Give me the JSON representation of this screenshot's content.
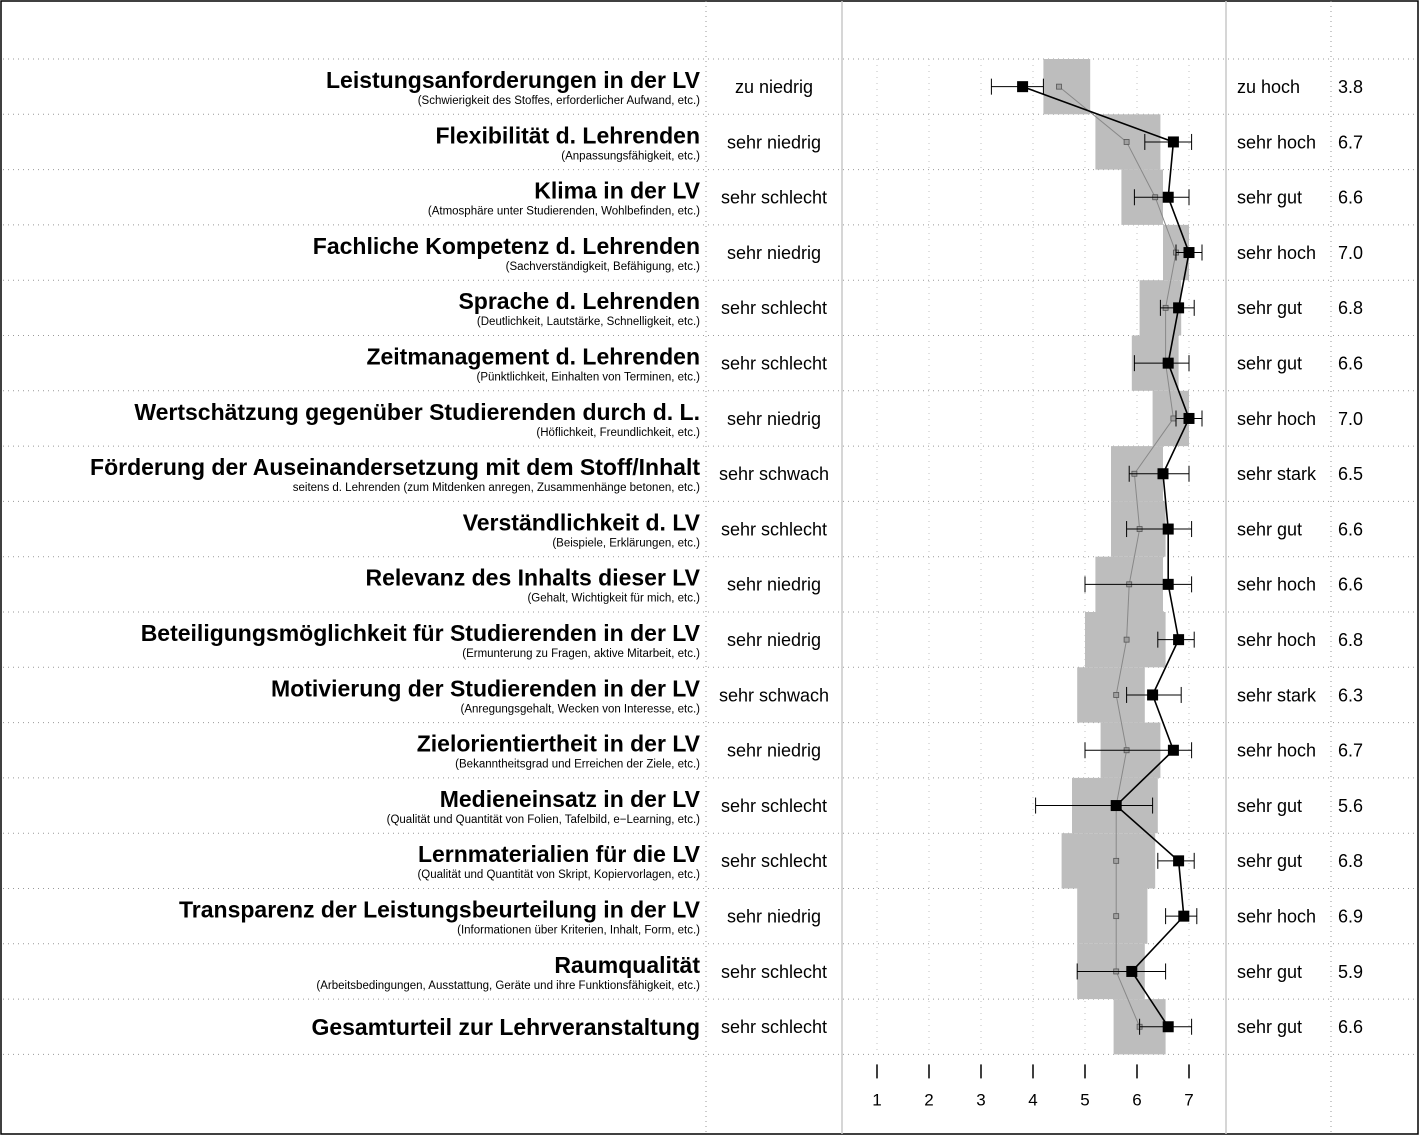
{
  "chart_data": {
    "type": "profile",
    "xlim": [
      1,
      7
    ],
    "xticks": [
      "1",
      "2",
      "3",
      "4",
      "5",
      "6",
      "7"
    ],
    "series": [
      {
        "values": [
          3.8,
          6.7,
          6.6,
          7.0,
          6.8,
          6.6,
          7.0,
          6.5,
          6.6,
          6.6,
          6.8,
          6.3,
          6.7,
          5.6,
          6.8,
          6.9,
          5.9,
          6.6
        ],
        "ci_low": [
          3.2,
          6.15,
          5.95,
          6.75,
          6.45,
          5.95,
          6.75,
          5.85,
          5.8,
          5.0,
          6.4,
          5.8,
          5.0,
          4.05,
          6.4,
          6.55,
          4.85,
          6.05
        ],
        "ci_high": [
          4.2,
          7.05,
          7.0,
          7.25,
          7.1,
          7.0,
          7.25,
          7.0,
          7.05,
          7.05,
          7.1,
          6.85,
          7.05,
          6.3,
          7.1,
          7.15,
          6.55,
          7.05
        ]
      },
      {
        "values": [
          4.5,
          5.8,
          6.35,
          6.75,
          6.55,
          6.55,
          6.7,
          5.95,
          6.05,
          5.85,
          5.8,
          5.6,
          5.8,
          5.6,
          5.6,
          5.6,
          5.6,
          6.05
        ]
      }
    ],
    "ranges": [
      [
        4.2,
        5.1
      ],
      [
        5.2,
        6.45
      ],
      [
        5.7,
        6.5
      ],
      [
        6.5,
        7.0
      ],
      [
        6.05,
        6.85
      ],
      [
        5.9,
        6.8
      ],
      [
        6.3,
        7.0
      ],
      [
        5.5,
        6.5
      ],
      [
        5.5,
        6.55
      ],
      [
        5.2,
        6.5
      ],
      [
        5.0,
        6.55
      ],
      [
        4.85,
        6.15
      ],
      [
        5.3,
        6.45
      ],
      [
        4.75,
        6.4
      ],
      [
        4.55,
        6.35
      ],
      [
        4.85,
        6.2
      ],
      [
        4.85,
        6.15
      ],
      [
        5.55,
        6.55
      ]
    ],
    "rows": [
      {
        "title": "Leistungsanforderungen in der LV",
        "subtitle": "(Schwierigkeit des Stoffes, erforderlicher Aufwand, etc.)",
        "left": "zu niedrig",
        "right": "zu hoch",
        "score": "3.8"
      },
      {
        "title": "Flexibilität d. Lehrenden",
        "subtitle": "(Anpassungsfähigkeit, etc.)",
        "left": "sehr niedrig",
        "right": "sehr hoch",
        "score": "6.7"
      },
      {
        "title": "Klima in der LV",
        "subtitle": "(Atmosphäre unter Studierenden, Wohlbefinden, etc.)",
        "left": "sehr schlecht",
        "right": "sehr gut",
        "score": "6.6"
      },
      {
        "title": "Fachliche Kompetenz d. Lehrenden",
        "subtitle": "(Sachverständigkeit, Befähigung, etc.)",
        "left": "sehr niedrig",
        "right": "sehr hoch",
        "score": "7.0"
      },
      {
        "title": "Sprache d. Lehrenden",
        "subtitle": "(Deutlichkeit, Lautstärke, Schnelligkeit, etc.)",
        "left": "sehr schlecht",
        "right": "sehr gut",
        "score": "6.8"
      },
      {
        "title": "Zeitmanagement d. Lehrenden",
        "subtitle": "(Pünktlichkeit, Einhalten von Terminen, etc.)",
        "left": "sehr schlecht",
        "right": "sehr gut",
        "score": "6.6"
      },
      {
        "title": "Wertschätzung gegenüber Studierenden durch d. L.",
        "subtitle": "(Höflichkeit, Freundlichkeit, etc.)",
        "left": "sehr niedrig",
        "right": "sehr hoch",
        "score": "7.0"
      },
      {
        "title": "Förderung der Auseinandersetzung mit dem Stoff/Inhalt",
        "subtitle": "seitens d. Lehrenden (zum Mitdenken anregen, Zusammenhänge betonen, etc.)",
        "left": "sehr schwach",
        "right": "sehr stark",
        "score": "6.5"
      },
      {
        "title": "Verständlichkeit d. LV",
        "subtitle": "(Beispiele, Erklärungen, etc.)",
        "left": "sehr schlecht",
        "right": "sehr gut",
        "score": "6.6"
      },
      {
        "title": "Relevanz des Inhalts dieser LV",
        "subtitle": "(Gehalt, Wichtigkeit für mich, etc.)",
        "left": "sehr niedrig",
        "right": "sehr hoch",
        "score": "6.6"
      },
      {
        "title": "Beteiligungsmöglichkeit für Studierenden in der LV",
        "subtitle": "(Ermunterung zu Fragen, aktive Mitarbeit, etc.)",
        "left": "sehr niedrig",
        "right": "sehr hoch",
        "score": "6.8"
      },
      {
        "title": "Motivierung der Studierenden in der LV",
        "subtitle": "(Anregungsgehalt, Wecken von Interesse, etc.)",
        "left": "sehr schwach",
        "right": "sehr stark",
        "score": "6.3"
      },
      {
        "title": "Zielorientiertheit in der LV",
        "subtitle": "(Bekanntheitsgrad und Erreichen der Ziele, etc.)",
        "left": "sehr niedrig",
        "right": "sehr hoch",
        "score": "6.7"
      },
      {
        "title": "Medieneinsatz in der LV",
        "subtitle": "(Qualität und Quantität von Folien, Tafelbild, e−Learning, etc.)",
        "left": "sehr schlecht",
        "right": "sehr gut",
        "score": "5.6"
      },
      {
        "title": "Lernmaterialien für die LV",
        "subtitle": "(Qualität und Quantität von Skript, Kopiervorlagen, etc.)",
        "left": "sehr schlecht",
        "right": "sehr gut",
        "score": "6.8"
      },
      {
        "title": "Transparenz der Leistungsbeurteilung in der LV",
        "subtitle": "(Informationen über Kriterien, Inhalt, Form, etc.)",
        "left": "sehr niedrig",
        "right": "sehr hoch",
        "score": "6.9"
      },
      {
        "title": "Raumqualität",
        "subtitle": "(Arbeitsbedingungen, Ausstattung, Geräte und ihre Funktionsfähigkeit, etc.)",
        "left": "sehr schlecht",
        "right": "sehr gut",
        "score": "5.9"
      },
      {
        "title": "Gesamturteil zur Lehrveranstaltung",
        "subtitle": "",
        "left": "sehr schlecht",
        "right": "sehr gut",
        "score": "6.6"
      }
    ],
    "colors": {
      "main": "#000000",
      "comparison": "#888888",
      "range_fill": "#bdbdbd",
      "grid": "#999999",
      "panel_border": "#c8c8c8"
    },
    "grid": true
  }
}
